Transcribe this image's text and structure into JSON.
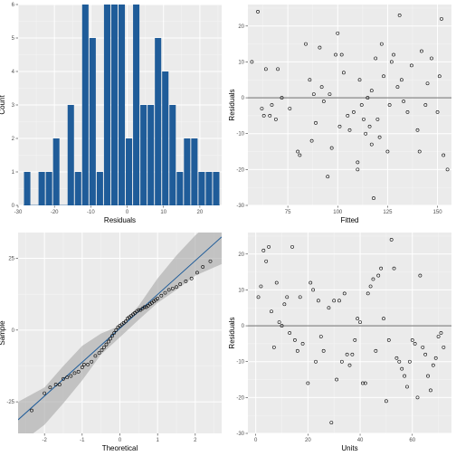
{
  "chart_data": [
    {
      "type": "bar",
      "xlabel": "Residuals",
      "ylabel": "Count",
      "xlim": [
        -30,
        26
      ],
      "ylim": [
        0,
        6
      ],
      "x_ticks": [
        -30,
        -20,
        -10,
        0,
        10,
        20
      ],
      "y_ticks": [
        0,
        1,
        2,
        3,
        4,
        5,
        6
      ],
      "bar_color": "#1f5c99",
      "bins": [
        {
          "x": -27.5,
          "count": 1
        },
        {
          "x": -23.5,
          "count": 1
        },
        {
          "x": -21.5,
          "count": 1
        },
        {
          "x": -19.5,
          "count": 2
        },
        {
          "x": -15.5,
          "count": 3
        },
        {
          "x": -13.5,
          "count": 1
        },
        {
          "x": -11.5,
          "count": 6
        },
        {
          "x": -9.5,
          "count": 5
        },
        {
          "x": -7.5,
          "count": 1
        },
        {
          "x": -5.5,
          "count": 6
        },
        {
          "x": -3.5,
          "count": 6
        },
        {
          "x": -1.5,
          "count": 6
        },
        {
          "x": 0.5,
          "count": 2
        },
        {
          "x": 2.5,
          "count": 6
        },
        {
          "x": 4.5,
          "count": 3
        },
        {
          "x": 6.5,
          "count": 3
        },
        {
          "x": 8.5,
          "count": 5
        },
        {
          "x": 10.5,
          "count": 4
        },
        {
          "x": 12.5,
          "count": 3
        },
        {
          "x": 14.5,
          "count": 1
        },
        {
          "x": 16.5,
          "count": 2
        },
        {
          "x": 18.5,
          "count": 2
        },
        {
          "x": 20.5,
          "count": 1
        },
        {
          "x": 22.5,
          "count": 1
        },
        {
          "x": 24.5,
          "count": 1
        }
      ]
    },
    {
      "type": "scatter",
      "xlabel": "Fitted",
      "ylabel": "Residuals",
      "xlim": [
        55,
        157
      ],
      "ylim": [
        -30,
        26
      ],
      "x_ticks": [
        75,
        100,
        125,
        150
      ],
      "y_ticks": [
        -30,
        -20,
        -10,
        0,
        10,
        20
      ],
      "hline": 0,
      "points": [
        [
          57,
          10
        ],
        [
          60,
          24
        ],
        [
          62,
          -3
        ],
        [
          63,
          -5
        ],
        [
          64,
          8
        ],
        [
          66,
          -5
        ],
        [
          67,
          -2
        ],
        [
          69,
          -6
        ],
        [
          70,
          8
        ],
        [
          72,
          0
        ],
        [
          76,
          -3
        ],
        [
          80,
          -15
        ],
        [
          81,
          -16
        ],
        [
          84,
          15
        ],
        [
          86,
          5
        ],
        [
          87,
          -12
        ],
        [
          88,
          1
        ],
        [
          89,
          -7
        ],
        [
          91,
          14
        ],
        [
          92,
          3
        ],
        [
          93,
          -1
        ],
        [
          95,
          -22
        ],
        [
          96,
          1
        ],
        [
          97,
          -14
        ],
        [
          99,
          12
        ],
        [
          100,
          18
        ],
        [
          101,
          -8
        ],
        [
          102,
          12
        ],
        [
          103,
          7
        ],
        [
          105,
          -5
        ],
        [
          106,
          -9
        ],
        [
          108,
          -4
        ],
        [
          110,
          -18
        ],
        [
          110,
          -20
        ],
        [
          111,
          5
        ],
        [
          112,
          -2
        ],
        [
          113,
          -6
        ],
        [
          114,
          -10
        ],
        [
          115,
          0
        ],
        [
          116,
          -8
        ],
        [
          117,
          -13
        ],
        [
          117,
          2
        ],
        [
          118,
          -28
        ],
        [
          119,
          11
        ],
        [
          120,
          -6
        ],
        [
          121,
          -11
        ],
        [
          122,
          15
        ],
        [
          123,
          6
        ],
        [
          125,
          -15
        ],
        [
          126,
          -2
        ],
        [
          127,
          10
        ],
        [
          128,
          12
        ],
        [
          130,
          3
        ],
        [
          131,
          23
        ],
        [
          132,
          5
        ],
        [
          133,
          -1
        ],
        [
          135,
          -4
        ],
        [
          137,
          9
        ],
        [
          140,
          -9
        ],
        [
          141,
          -15
        ],
        [
          142,
          13
        ],
        [
          144,
          -2
        ],
        [
          145,
          4
        ],
        [
          147,
          11
        ],
        [
          150,
          -4
        ],
        [
          151,
          6
        ],
        [
          152,
          22
        ],
        [
          153,
          -16
        ],
        [
          155,
          -20
        ]
      ]
    },
    {
      "type": "scatter",
      "subtype": "qq",
      "xlabel": "Theoretical",
      "ylabel": "Sample",
      "xlim": [
        -2.7,
        2.7
      ],
      "ylim": [
        -36,
        34
      ],
      "x_ticks": [
        -2,
        -1,
        0,
        1,
        2
      ],
      "y_ticks": [
        -25,
        0,
        25
      ],
      "line": {
        "intercept": 0.6,
        "slope": 11.8,
        "color": "#1f5c99"
      },
      "band": {
        "x": [
          -2.7,
          -2.0,
          -1.5,
          -1.0,
          -0.5,
          0,
          0.5,
          1.0,
          1.5,
          2.0,
          2.7
        ],
        "lower": [
          -40,
          -33,
          -25.5,
          -17.5,
          -8.5,
          -2.5,
          3.6,
          9.5,
          14,
          19,
          23
        ],
        "upper": [
          -25,
          -20,
          -12.5,
          -5.5,
          -1.2,
          1.5,
          8.5,
          18,
          26,
          33,
          41
        ]
      },
      "points": [
        [
          -2.34,
          -28
        ],
        [
          -2.0,
          -22
        ],
        [
          -1.85,
          -20
        ],
        [
          -1.7,
          -19
        ],
        [
          -1.6,
          -19
        ],
        [
          -1.5,
          -17
        ],
        [
          -1.4,
          -16.5
        ],
        [
          -1.3,
          -16
        ],
        [
          -1.2,
          -15
        ],
        [
          -1.1,
          -14.5
        ],
        [
          -1.0,
          -13
        ],
        [
          -0.95,
          -12
        ],
        [
          -0.85,
          -12
        ],
        [
          -0.75,
          -11
        ],
        [
          -0.65,
          -9
        ],
        [
          -0.55,
          -8
        ],
        [
          -0.48,
          -7
        ],
        [
          -0.42,
          -6
        ],
        [
          -0.36,
          -5
        ],
        [
          -0.3,
          -4
        ],
        [
          -0.25,
          -3
        ],
        [
          -0.2,
          -2
        ],
        [
          -0.15,
          -1
        ],
        [
          -0.1,
          0
        ],
        [
          -0.05,
          1
        ],
        [
          0.0,
          1.5
        ],
        [
          0.05,
          2
        ],
        [
          0.1,
          2.5
        ],
        [
          0.15,
          3
        ],
        [
          0.2,
          4
        ],
        [
          0.25,
          4.5
        ],
        [
          0.3,
          5
        ],
        [
          0.35,
          5.5
        ],
        [
          0.4,
          6
        ],
        [
          0.45,
          6.5
        ],
        [
          0.5,
          7
        ],
        [
          0.55,
          7
        ],
        [
          0.6,
          7.5
        ],
        [
          0.65,
          8
        ],
        [
          0.7,
          8
        ],
        [
          0.75,
          8.5
        ],
        [
          0.8,
          9
        ],
        [
          0.85,
          9.5
        ],
        [
          0.9,
          10
        ],
        [
          0.95,
          10.5
        ],
        [
          1.0,
          11
        ],
        [
          1.1,
          12
        ],
        [
          1.2,
          13
        ],
        [
          1.3,
          14
        ],
        [
          1.4,
          14.5
        ],
        [
          1.5,
          15
        ],
        [
          1.6,
          16
        ],
        [
          1.75,
          17
        ],
        [
          1.9,
          18
        ],
        [
          2.05,
          20
        ],
        [
          2.2,
          22
        ],
        [
          2.4,
          24
        ]
      ]
    },
    {
      "type": "scatter",
      "xlabel": "Units",
      "ylabel": "Residuals",
      "xlim": [
        -3,
        75
      ],
      "ylim": [
        -30,
        26
      ],
      "x_ticks": [
        0,
        20,
        40,
        60
      ],
      "y_ticks": [
        -30,
        -20,
        -10,
        0,
        10,
        20
      ],
      "hline": 0,
      "points": [
        [
          1,
          8
        ],
        [
          2,
          11
        ],
        [
          3,
          21
        ],
        [
          4,
          18
        ],
        [
          5,
          22
        ],
        [
          6,
          4
        ],
        [
          7,
          -6
        ],
        [
          8,
          12
        ],
        [
          9,
          1
        ],
        [
          10,
          0
        ],
        [
          11,
          6
        ],
        [
          12,
          8
        ],
        [
          13,
          -2
        ],
        [
          14,
          22
        ],
        [
          15,
          -4
        ],
        [
          16,
          -7
        ],
        [
          17,
          8
        ],
        [
          18,
          -5
        ],
        [
          20,
          -16
        ],
        [
          21,
          12
        ],
        [
          22,
          10
        ],
        [
          23,
          -10
        ],
        [
          24,
          7
        ],
        [
          25,
          -3
        ],
        [
          26,
          -7
        ],
        [
          28,
          5
        ],
        [
          29,
          -27
        ],
        [
          30,
          7
        ],
        [
          31,
          -15
        ],
        [
          32,
          7
        ],
        [
          33,
          -10
        ],
        [
          34,
          9
        ],
        [
          35,
          -8
        ],
        [
          36,
          -11
        ],
        [
          37,
          -8
        ],
        [
          38,
          -4
        ],
        [
          39,
          2
        ],
        [
          40,
          1
        ],
        [
          41,
          -16
        ],
        [
          42,
          -16
        ],
        [
          43,
          9
        ],
        [
          44,
          11
        ],
        [
          45,
          13
        ],
        [
          46,
          -7
        ],
        [
          47,
          14
        ],
        [
          48,
          16
        ],
        [
          49,
          2
        ],
        [
          50,
          -21
        ],
        [
          51,
          -4
        ],
        [
          52,
          24
        ],
        [
          53,
          16
        ],
        [
          54,
          -9
        ],
        [
          55,
          -10
        ],
        [
          56,
          -12
        ],
        [
          57,
          -14
        ],
        [
          58,
          -17
        ],
        [
          59,
          -10
        ],
        [
          60,
          -4
        ],
        [
          61,
          -5
        ],
        [
          62,
          -20
        ],
        [
          63,
          14
        ],
        [
          64,
          -6
        ],
        [
          65,
          -8
        ],
        [
          66,
          -14
        ],
        [
          67,
          -18
        ],
        [
          68,
          -11
        ],
        [
          69,
          -9
        ],
        [
          70,
          -3
        ],
        [
          71,
          -2
        ],
        [
          72,
          -6
        ]
      ]
    }
  ]
}
